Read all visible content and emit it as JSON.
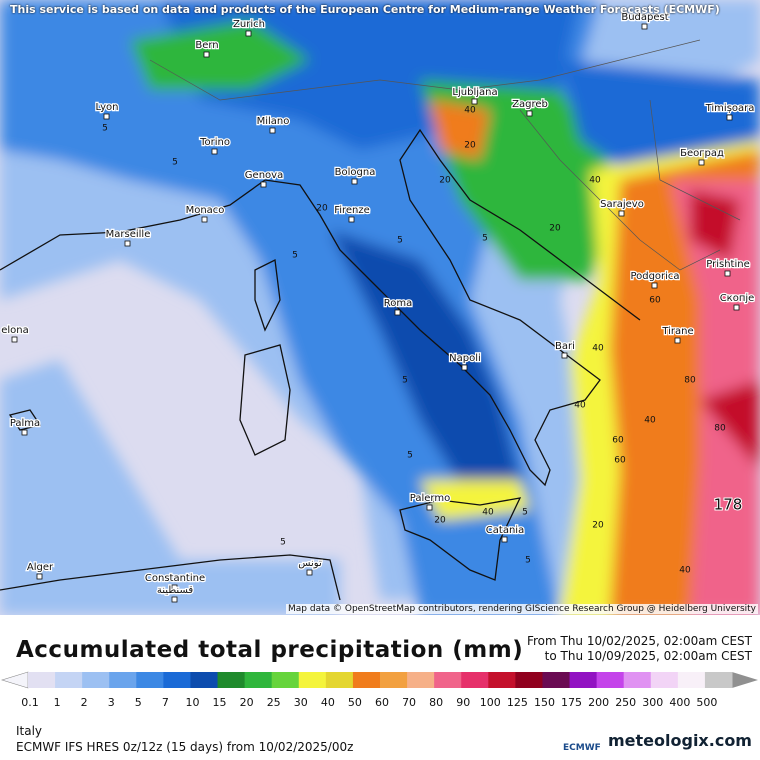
{
  "header": {
    "disclaimer": "This service is based on data and products of the European Centre for Medium-range Weather Forecasts (ECMWF)",
    "attribution": "Map data © OpenStreetMap contributors, rendering GIScience Research Group @ Heidelberg University"
  },
  "map": {
    "cities": [
      "Bern",
      "Zurich",
      "Budapest",
      "Lyon",
      "Milano",
      "Ljubljana",
      "Zagreb",
      "Timișoara",
      "Torino",
      "Genova",
      "Bologna",
      "Београд",
      "Monaco",
      "Firenze",
      "Sarajevo",
      "Marseille",
      "Podgorica",
      "Prishtine",
      "Roma",
      "Скопје",
      "Tirane",
      "elona",
      "Napoli",
      "Bari",
      "Palma",
      "Palermo",
      "Catania",
      "Alger",
      "Constantine",
      "قسنطينة",
      "تونس"
    ],
    "contour_labels": [
      5,
      5,
      20,
      5,
      5,
      20,
      40,
      20,
      5,
      5,
      5,
      20,
      40,
      40,
      60,
      40,
      80,
      20,
      40,
      60,
      80,
      5,
      5,
      40,
      20,
      178,
      40,
      60,
      5
    ]
  },
  "title": "Accumulated total precipitation (mm)",
  "period": {
    "from": "From Thu 10/02/2025, 02:00am CEST",
    "to": "to Thu 10/09/2025, 02:00am CEST"
  },
  "colorbar": {
    "levels": [
      0.1,
      1,
      2,
      3,
      5,
      7,
      10,
      15,
      20,
      25,
      30,
      40,
      50,
      60,
      70,
      80,
      90,
      100,
      125,
      150,
      175,
      200,
      250,
      300,
      400,
      500
    ],
    "colors": [
      "#e2e0f2",
      "#c4d4f4",
      "#9cc0f2",
      "#6aa4ec",
      "#3c88e4",
      "#1a6ad6",
      "#0c4cae",
      "#1f8a2c",
      "#2fb63c",
      "#66d43c",
      "#f4f43c",
      "#e4d630",
      "#f07c1c",
      "#f2a040",
      "#f6b088",
      "#f0648a",
      "#e6306a",
      "#c4102c",
      "#90001e",
      "#6a0a52",
      "#9212c2",
      "#c444ea",
      "#e092f2",
      "#f2d4f6",
      "#f8f0f8",
      "#c8c8c8"
    ]
  },
  "footer": {
    "region": "Italy",
    "model": "ECMWF IFS HRES 0z/12z (15 days) from 10/02/2025/00z",
    "logo_small": "ECMWF",
    "logo": "meteologix.com"
  }
}
